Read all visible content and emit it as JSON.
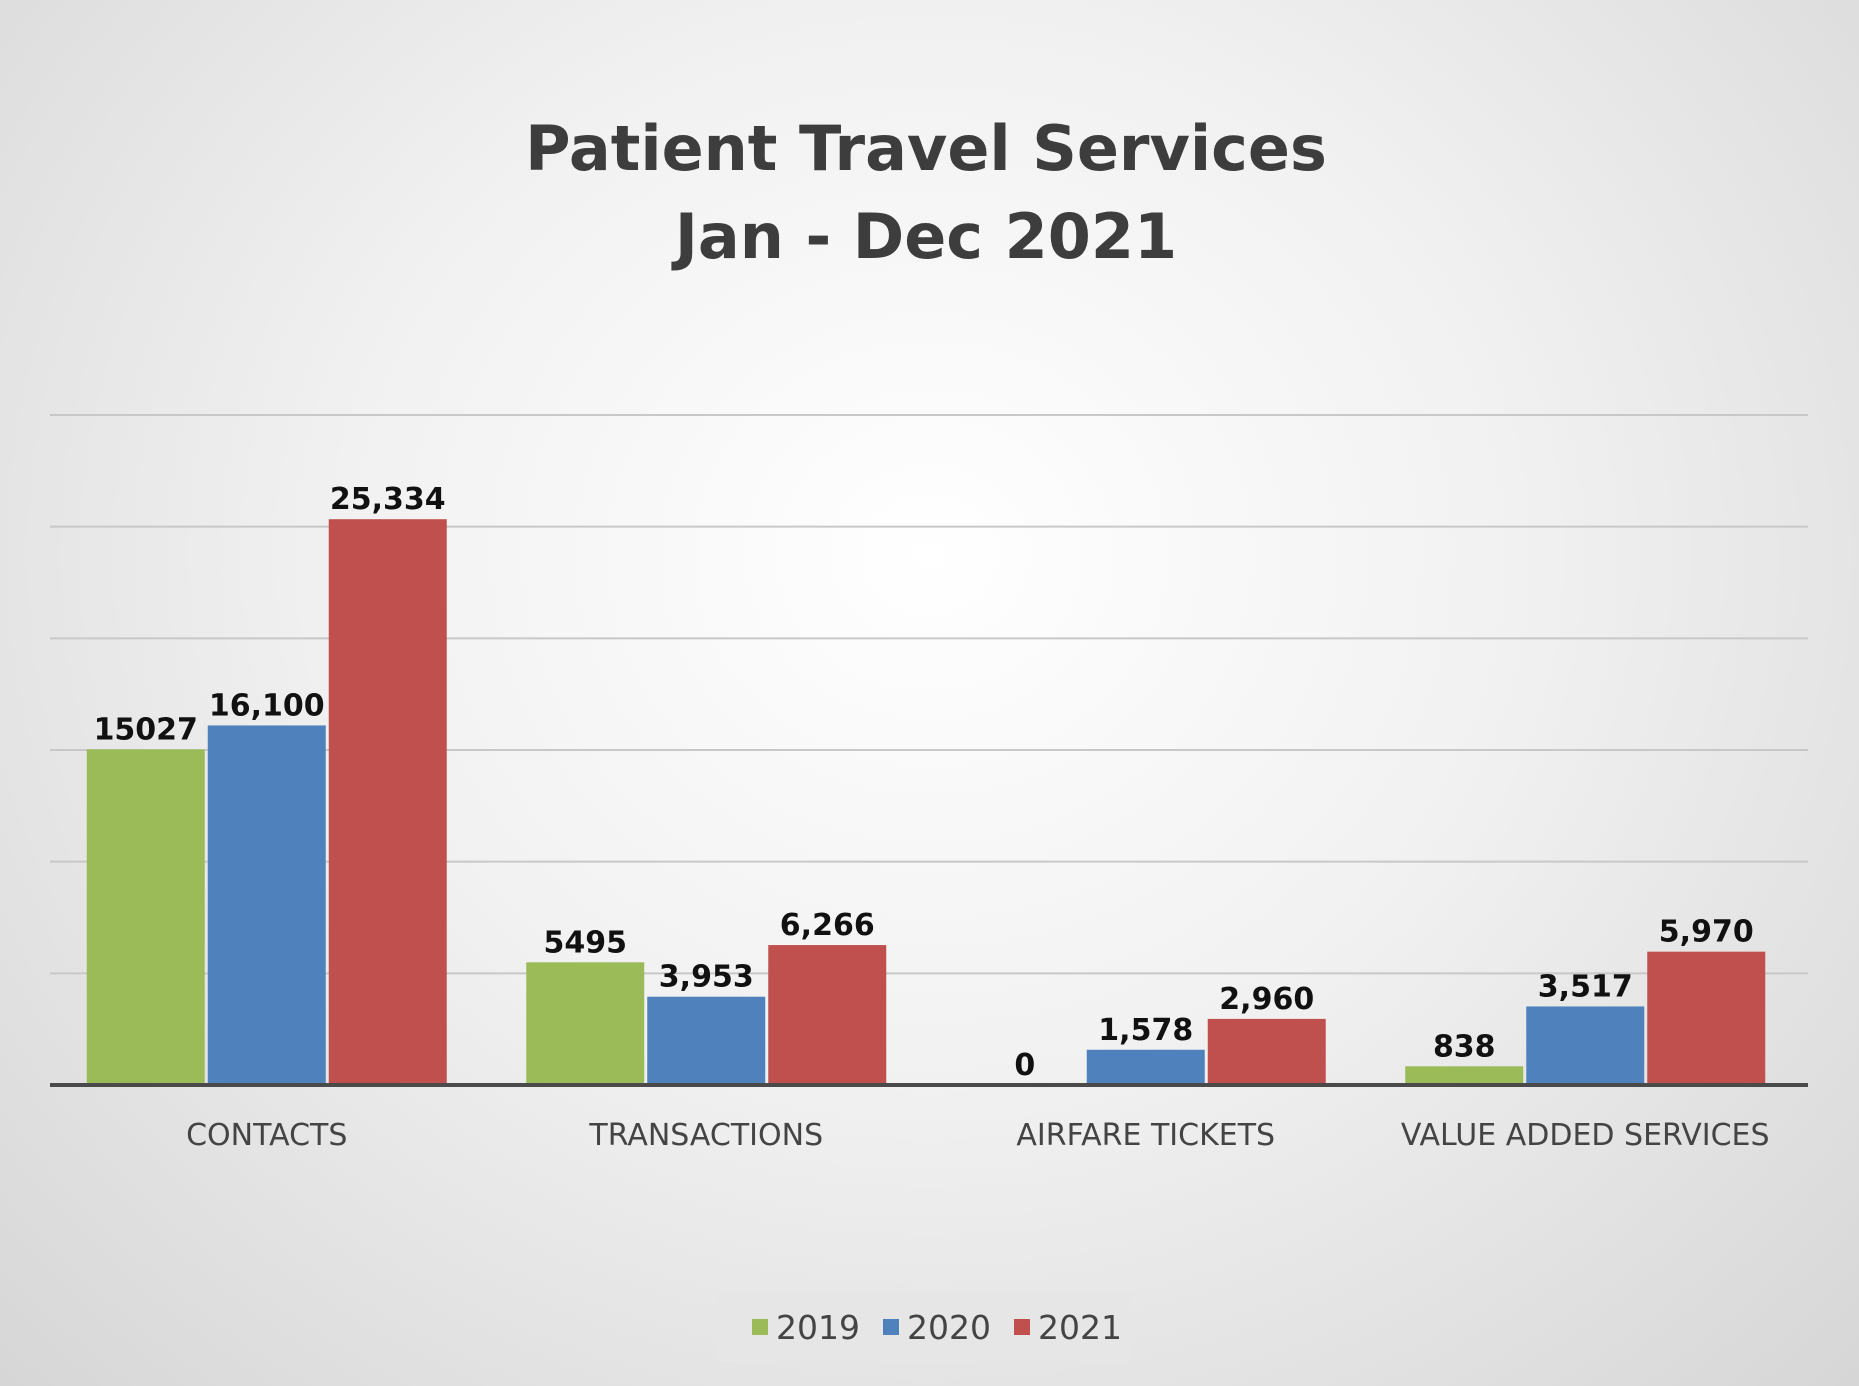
{
  "chart_data": {
    "type": "bar",
    "title": [
      "Patient Travel Services",
      "Jan - Dec 2021"
    ],
    "categories": [
      "CONTACTS",
      "TRANSACTIONS",
      "AIRFARE TICKETS",
      "VALUE ADDED SERVICES"
    ],
    "series": [
      {
        "name": "2019",
        "color": "#9bbb59",
        "values": [
          15027,
          5495,
          0,
          838
        ],
        "labels": [
          "15027",
          "5495",
          "0",
          "838"
        ]
      },
      {
        "name": "2020",
        "color": "#4f81bd",
        "values": [
          16100,
          3953,
          1578,
          3517
        ],
        "labels": [
          "16,100",
          "3,953",
          "1,578",
          "3,517"
        ]
      },
      {
        "name": "2021",
        "color": "#c0504d",
        "values": [
          25334,
          6266,
          2960,
          5970
        ],
        "labels": [
          "25,334",
          "6,266",
          "2,960",
          "5,970"
        ]
      }
    ],
    "ylim": [
      0,
      30000
    ],
    "y_major_unit": 5000,
    "grid": true,
    "legend": "bottom-center",
    "xlabel": "",
    "ylabel": ""
  }
}
